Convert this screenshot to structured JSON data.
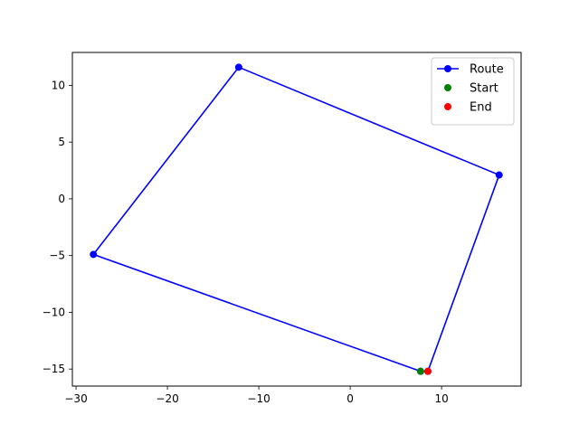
{
  "chart_data": {
    "type": "line",
    "title": "",
    "xlabel": "",
    "ylabel": "",
    "xlim": [
      -30.4,
      18.7
    ],
    "ylim": [
      -16.5,
      12.9
    ],
    "grid": false,
    "legend_placement": "top-right",
    "x_ticks": [
      -30,
      -20,
      -10,
      0,
      10
    ],
    "x_tick_labels": [
      "−30",
      "−20",
      "−10",
      "0",
      "10"
    ],
    "y_ticks": [
      10,
      5,
      0,
      -5,
      -10,
      -15
    ],
    "y_tick_labels": [
      "10",
      "5",
      "0",
      "−5",
      "−10",
      "−15"
    ],
    "series": [
      {
        "name": "Route",
        "color": "#0000ff",
        "style": "line-marker",
        "x": [
          7.7,
          -28.1,
          -12.2,
          16.3,
          8.5
        ],
        "y": [
          -15.2,
          -4.9,
          11.6,
          2.1,
          -15.2
        ]
      },
      {
        "name": "Start",
        "color": "#008000",
        "style": "marker",
        "x": [
          7.7
        ],
        "y": [
          -15.2
        ]
      },
      {
        "name": "End",
        "color": "#ff0000",
        "style": "marker",
        "x": [
          8.5
        ],
        "y": [
          -15.2
        ]
      }
    ]
  }
}
